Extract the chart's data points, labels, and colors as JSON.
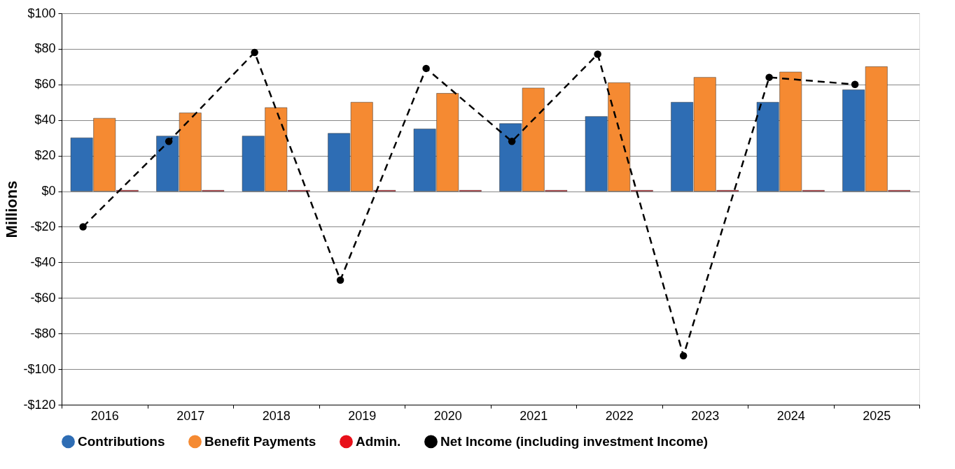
{
  "chart_data": {
    "type": "bar",
    "ylabel": "Millions",
    "categories": [
      "2016",
      "2017",
      "2018",
      "2019",
      "2020",
      "2021",
      "2022",
      "2023",
      "2024",
      "2025"
    ],
    "series": [
      {
        "name": "Contributions",
        "color": "#2e6db4",
        "values": [
          30,
          31,
          31,
          32.5,
          35,
          38,
          42,
          50,
          50,
          57
        ]
      },
      {
        "name": "Benefit Payments",
        "color": "#f58a32",
        "values": [
          41,
          44,
          47,
          50,
          55,
          58,
          61,
          64,
          67,
          70
        ]
      },
      {
        "name": "Admin.",
        "color": "#e8101a",
        "values": [
          0.5,
          0.5,
          0.5,
          0.5,
          0.5,
          0.5,
          0.5,
          0.5,
          0.5,
          0.5
        ]
      },
      {
        "name": "Net Income (including investment Income)",
        "type": "line",
        "color": "#000000",
        "line_style": "dashed",
        "marker": "circle",
        "values": [
          -20,
          28,
          78,
          -50,
          69,
          28,
          77,
          -92.5,
          64,
          60
        ]
      }
    ],
    "ylim": [
      -120,
      100
    ],
    "yticks": [
      {
        "value": -120,
        "label": "-$120"
      },
      {
        "value": -100,
        "label": "-$100"
      },
      {
        "value": -80,
        "label": "-$80"
      },
      {
        "value": -60,
        "label": "-$60"
      },
      {
        "value": -40,
        "label": "-$40"
      },
      {
        "value": -20,
        "label": "-$20"
      },
      {
        "value": 0,
        "label": "$0"
      },
      {
        "value": 20,
        "label": "$20"
      },
      {
        "value": 40,
        "label": "$40"
      },
      {
        "value": 60,
        "label": "$60"
      },
      {
        "value": 80,
        "label": "$80"
      },
      {
        "value": 100,
        "label": "$100"
      }
    ],
    "grid": "y",
    "legend": "bottom"
  }
}
